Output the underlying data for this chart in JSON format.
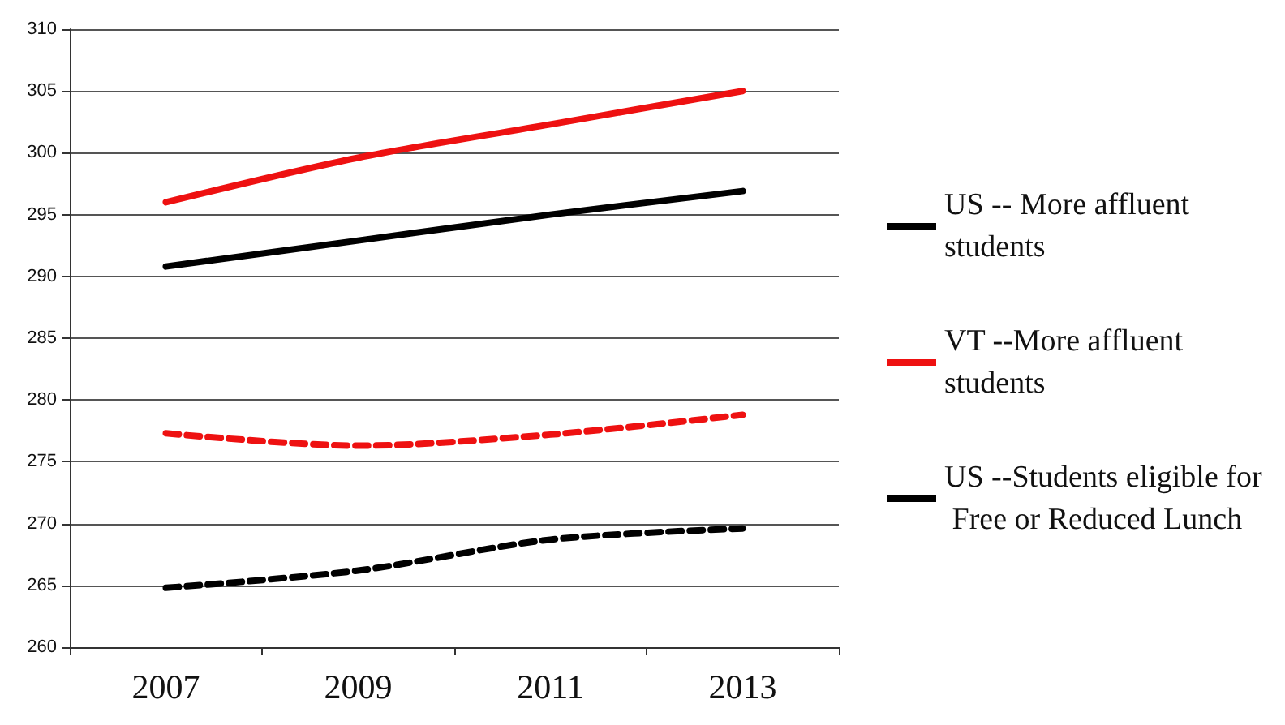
{
  "chart_data": {
    "type": "line",
    "categories": [
      "2007",
      "2009",
      "2011",
      "2013"
    ],
    "series": [
      {
        "name": "US -- More affluent students",
        "color": "#000000",
        "line_style": "solid",
        "values": [
          290.8,
          292.9,
          295.0,
          296.9
        ]
      },
      {
        "name": "VT --More affluent students",
        "color": "#ee1111",
        "line_style": "solid",
        "values": [
          296.0,
          299.6,
          302.3,
          305.0
        ]
      },
      {
        "color": "#ee1111",
        "line_style": "dashed",
        "values": [
          277.3,
          276.3,
          277.2,
          278.8
        ]
      },
      {
        "name": "US --Students eligible for Free or Reduced Lunch",
        "color": "#000000",
        "line_style": "dashed",
        "values": [
          264.8,
          266.2,
          268.7,
          269.6
        ]
      }
    ],
    "ylim": [
      260,
      310
    ],
    "yticks": [
      260,
      265,
      270,
      275,
      280,
      285,
      290,
      295,
      300,
      305,
      310
    ],
    "grid": "y",
    "legend": "right",
    "marker": "none"
  }
}
